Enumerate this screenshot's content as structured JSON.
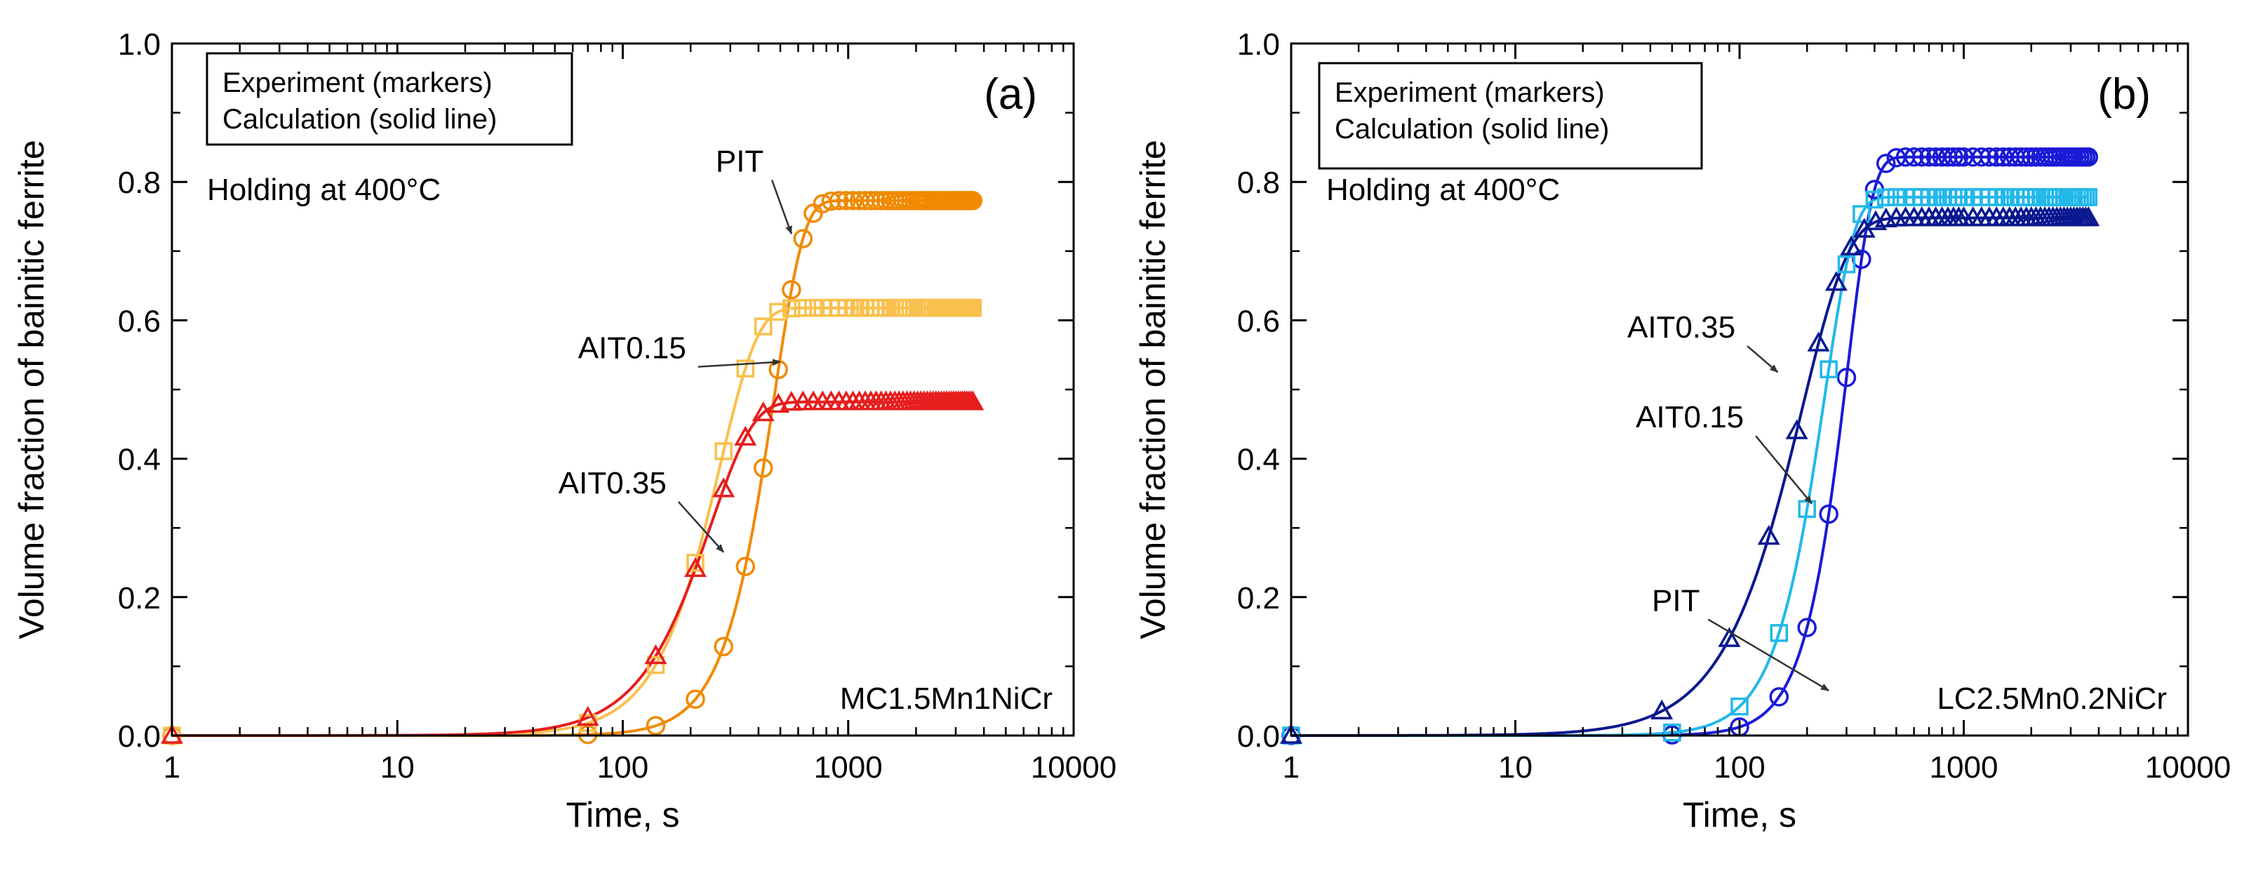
{
  "chart_data": [
    {
      "type": "line",
      "panel_label": "(a)",
      "xlabel": "Time, s",
      "ylabel": "Volume fraction of bainitic ferrite",
      "xscale": "log",
      "xlim": [
        1,
        10000
      ],
      "ylim": [
        0,
        1
      ],
      "x_ticks": [
        1,
        10,
        100,
        1000,
        10000
      ],
      "x_tick_labels": [
        "1",
        "10",
        "100",
        "1000",
        "10000"
      ],
      "y_ticks": [
        0,
        0.2,
        0.4,
        0.6,
        0.8,
        1.0
      ],
      "y_tick_labels": [
        "0.0",
        "0.2",
        "0.4",
        "0.6",
        "0.8",
        "1.0"
      ],
      "legend": [
        "Experiment (markers)",
        "Calculation (solid line)"
      ],
      "legend_position": "top-left",
      "condition_text": "Holding at 400°C",
      "sample": "MC1.5Mn1NiCr",
      "series": [
        {
          "name": "PIT",
          "color": "#f08a00",
          "marker": "circle",
          "final": 0.773,
          "t_mid": 420,
          "n": 3.3,
          "markers_x": [
            1,
            70,
            140,
            210,
            280,
            350,
            420,
            490,
            560,
            630,
            700,
            770,
            840,
            910,
            980,
            1050,
            1120,
            1190,
            1260,
            1330,
            1400,
            1470,
            1540,
            1610,
            1680,
            1750,
            1820,
            1890,
            1960,
            2030,
            2100,
            2170,
            2240,
            2310,
            2380,
            2450,
            2520,
            2590,
            2660,
            2730,
            2800,
            2870,
            2940,
            3010,
            3080,
            3150,
            3220,
            3290,
            3360,
            3430,
            3500,
            3570
          ]
        },
        {
          "name": "AIT0.15",
          "color": "#f8c04c",
          "marker": "square",
          "final": 0.618,
          "t_mid": 235,
          "n": 2.6,
          "markers_x": [
            1,
            70,
            140,
            210,
            280,
            350,
            420,
            490,
            560,
            630,
            700,
            770,
            840,
            910,
            980,
            1050,
            1120,
            1190,
            1260,
            1330,
            1400,
            1470,
            1540,
            1610,
            1680,
            1750,
            1820,
            1890,
            1960,
            2030,
            2100,
            2170,
            2240,
            2310,
            2380,
            2450,
            2520,
            2590,
            2660,
            2730,
            2800,
            2870,
            2940,
            3010,
            3080,
            3150,
            3220,
            3290,
            3360,
            3430,
            3500,
            3570
          ]
        },
        {
          "name": "AIT0.35",
          "color": "#e61e1e",
          "marker": "triangle",
          "final": 0.482,
          "t_mid": 210,
          "n": 2.3,
          "markers_x": [
            1,
            70,
            140,
            210,
            280,
            350,
            420,
            490,
            560,
            630,
            700,
            770,
            840,
            910,
            980,
            1050,
            1120,
            1190,
            1260,
            1330,
            1400,
            1470,
            1540,
            1610,
            1680,
            1750,
            1820,
            1890,
            1960,
            2030,
            2100,
            2170,
            2240,
            2310,
            2380,
            2450,
            2520,
            2590,
            2660,
            2730,
            2800,
            2870,
            2940,
            3010,
            3080,
            3150,
            3220,
            3290,
            3360,
            3430,
            3500,
            3570
          ]
        }
      ],
      "annotations": [
        {
          "text": "PIT",
          "series": "PIT",
          "label_at": [
            330,
            0.815
          ],
          "arrow_to": [
            560,
            0.725
          ]
        },
        {
          "text": "AIT0.15",
          "series": "AIT0.15",
          "label_at": [
            110,
            0.545
          ],
          "arrow_to": [
            500,
            0.54
          ]
        },
        {
          "text": "AIT0.35",
          "series": "AIT0.35",
          "label_at": [
            90,
            0.35
          ],
          "arrow_to": [
            280,
            0.265
          ]
        }
      ]
    },
    {
      "type": "line",
      "panel_label": "(b)",
      "xlabel": "Time, s",
      "ylabel": "Volume fraction of bainitic ferrite",
      "xscale": "log",
      "xlim": [
        1,
        10000
      ],
      "ylim": [
        0,
        1
      ],
      "x_ticks": [
        1,
        10,
        100,
        1000,
        10000
      ],
      "x_tick_labels": [
        "1",
        "10",
        "100",
        "1000",
        "10000"
      ],
      "y_ticks": [
        0,
        0.2,
        0.4,
        0.6,
        0.8,
        1.0
      ],
      "y_tick_labels": [
        "0.0",
        "0.2",
        "0.4",
        "0.6",
        "0.8",
        "1.0"
      ],
      "legend": [
        "Experiment (markers)",
        "Calculation (solid line)"
      ],
      "legend_position": "top-left",
      "condition_text": "Holding at 400°C",
      "sample": "LC2.5Mn0.2NiCr",
      "series": [
        {
          "name": "PIT",
          "color": "#1a1ad6",
          "marker": "circle",
          "final": 0.836,
          "t_mid": 275,
          "n": 3.8,
          "markers_x": [
            1,
            50,
            100,
            150,
            200,
            250,
            300,
            350,
            400,
            450,
            500,
            550,
            600,
            650,
            700,
            750,
            800,
            850,
            900,
            950,
            1000,
            1100,
            1200,
            1300,
            1400,
            1500,
            1600,
            1700,
            1800,
            1900,
            2000,
            2100,
            2200,
            2300,
            2400,
            2500,
            2600,
            2700,
            2800,
            2900,
            3000,
            3100,
            3200,
            3300,
            3400,
            3500,
            3600
          ]
        },
        {
          "name": "AIT0.15",
          "color": "#22b8ea",
          "marker": "square",
          "final": 0.778,
          "t_mid": 215,
          "n": 3.3,
          "markers_x": [
            1,
            50,
            100,
            150,
            200,
            250,
            300,
            350,
            400,
            450,
            500,
            550,
            600,
            650,
            700,
            750,
            800,
            850,
            900,
            950,
            1000,
            1100,
            1200,
            1300,
            1400,
            1500,
            1600,
            1700,
            1800,
            1900,
            2000,
            2100,
            2200,
            2300,
            2400,
            2500,
            2600,
            2700,
            2800,
            2900,
            3000,
            3100,
            3200,
            3300,
            3400,
            3500,
            3600
          ]
        },
        {
          "name": "AIT0.35",
          "color": "#0a1890",
          "marker": "triangle",
          "final": 0.748,
          "t_mid": 160,
          "n": 2.1,
          "markers_x": [
            1,
            45,
            90,
            135,
            180,
            225,
            270,
            315,
            360,
            405,
            450,
            500,
            550,
            600,
            650,
            700,
            750,
            800,
            850,
            900,
            950,
            1000,
            1100,
            1200,
            1300,
            1400,
            1500,
            1600,
            1700,
            1800,
            1900,
            2000,
            2100,
            2200,
            2300,
            2400,
            2500,
            2600,
            2700,
            2800,
            2900,
            3000,
            3100,
            3200,
            3300,
            3400,
            3500,
            3600
          ]
        }
      ],
      "annotations": [
        {
          "text": "AIT0.35",
          "series": "AIT0.35",
          "label_at": [
            55,
            0.575
          ],
          "arrow_to": [
            148,
            0.525
          ]
        },
        {
          "text": "AIT0.15",
          "series": "AIT0.15",
          "label_at": [
            60,
            0.445
          ],
          "arrow_to": [
            210,
            0.335
          ]
        },
        {
          "text": "PIT",
          "series": "PIT",
          "label_at": [
            52,
            0.18
          ],
          "arrow_to": [
            250,
            0.065
          ]
        }
      ]
    }
  ]
}
